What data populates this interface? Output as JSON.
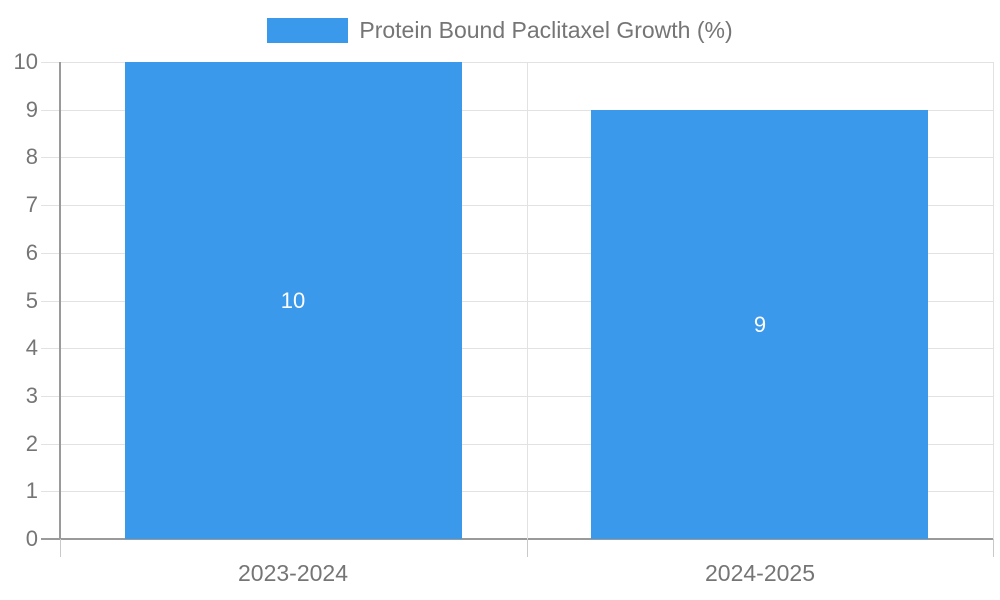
{
  "chart_data": {
    "type": "bar",
    "title": "",
    "legend": {
      "position": "top",
      "label": "Protein Bound Paclitaxel Growth (%)"
    },
    "categories": [
      "2023-2024",
      "2024-2025"
    ],
    "series": [
      {
        "name": "Protein Bound Paclitaxel Growth (%)",
        "color": "#3b99ec",
        "values": [
          10,
          9
        ]
      }
    ],
    "data_labels": [
      "10",
      "9"
    ],
    "ylim": [
      0,
      10
    ],
    "yticks": [
      0,
      1,
      2,
      3,
      4,
      5,
      6,
      7,
      8,
      9,
      10
    ],
    "xlabel": "",
    "ylabel": "",
    "grid": true
  },
  "colors": {
    "bar": "#3b99ec",
    "gridline": "#e2e2e2",
    "axis": "#9a9a9a",
    "bottom_tick": "#c9c9c9",
    "text": "#757575",
    "bar_label": "#fdfdfd",
    "background": "#ffffff"
  }
}
